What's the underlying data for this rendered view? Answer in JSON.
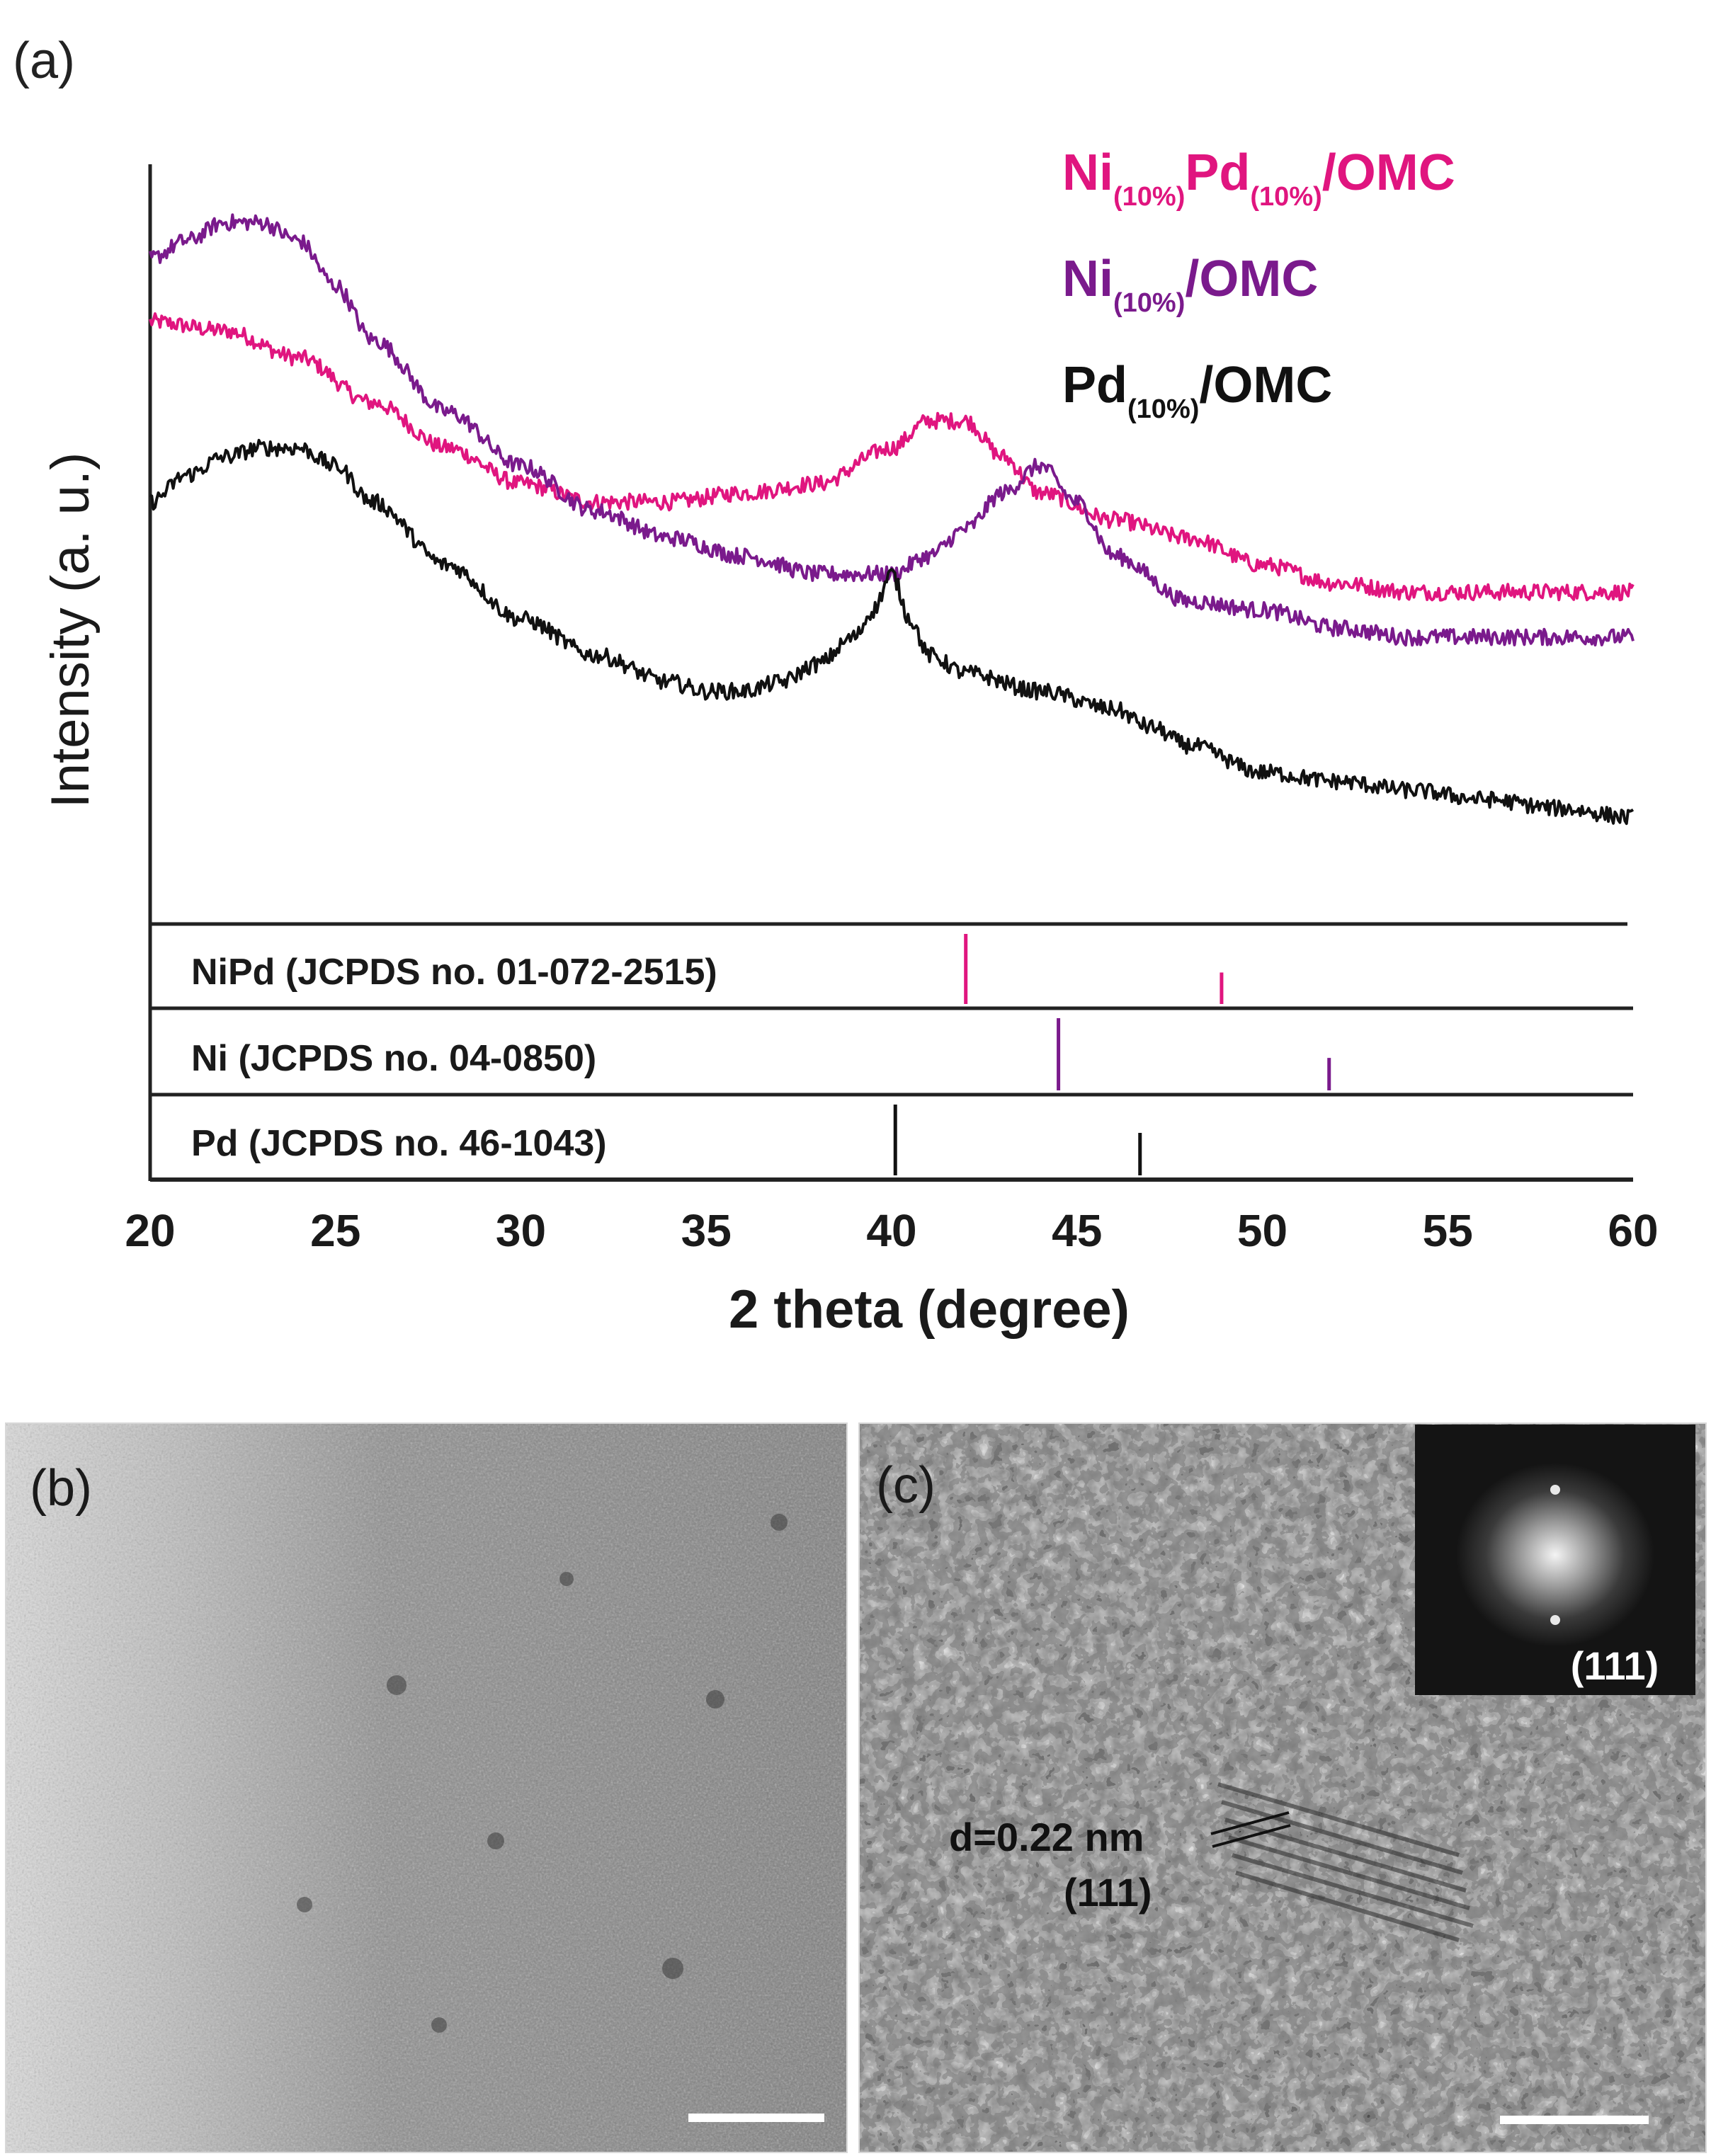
{
  "panels": {
    "a_label": "(a)",
    "b_label": "(b)",
    "c_label": "(c)"
  },
  "chart_data": {
    "type": "line",
    "xlabel": "2 theta (degree)",
    "ylabel": "Intensity (a. u.)",
    "xlim": [
      20,
      60
    ],
    "xticks": [
      20,
      25,
      30,
      35,
      40,
      45,
      50,
      55,
      60
    ],
    "series": [
      {
        "name": "Ni(10%)Pd(10%)/OMC",
        "color": "#e0157f",
        "x": [
          20,
          22,
          24,
          26,
          28,
          30,
          32,
          34,
          36,
          38,
          40,
          41,
          42,
          43,
          44,
          46,
          48,
          50,
          52,
          54,
          56,
          58,
          60
        ],
        "y": [
          0.9,
          0.89,
          0.86,
          0.81,
          0.76,
          0.72,
          0.7,
          0.7,
          0.71,
          0.72,
          0.76,
          0.79,
          0.79,
          0.75,
          0.71,
          0.68,
          0.66,
          0.63,
          0.61,
          0.6,
          0.6,
          0.6,
          0.6
        ]
      },
      {
        "name": "Ni(10%)/OMC",
        "color": "#7a1a8c",
        "x": [
          20,
          21,
          22,
          23,
          24,
          25,
          26,
          28,
          30,
          32,
          34,
          36,
          38,
          39,
          40,
          41,
          42,
          43,
          44,
          45,
          46,
          48,
          50,
          52,
          54,
          56,
          58,
          60
        ],
        "y": [
          0.97,
          0.99,
          1.01,
          1.01,
          0.99,
          0.94,
          0.88,
          0.8,
          0.74,
          0.69,
          0.66,
          0.64,
          0.62,
          0.62,
          0.62,
          0.64,
          0.67,
          0.71,
          0.74,
          0.7,
          0.64,
          0.59,
          0.58,
          0.56,
          0.55,
          0.55,
          0.55,
          0.55
        ]
      },
      {
        "name": "Pd(10%)/OMC",
        "color": "#111111",
        "x": [
          20,
          21,
          22,
          23,
          24,
          25,
          26,
          28,
          30,
          32,
          34,
          35,
          36,
          37,
          38,
          39,
          39.5,
          40,
          40.5,
          41,
          42,
          44,
          46,
          47,
          48,
          50,
          52,
          54,
          56,
          58,
          60
        ],
        "y": [
          0.7,
          0.73,
          0.75,
          0.76,
          0.76,
          0.74,
          0.7,
          0.63,
          0.57,
          0.53,
          0.5,
          0.49,
          0.49,
          0.5,
          0.52,
          0.55,
          0.58,
          0.62,
          0.57,
          0.53,
          0.51,
          0.49,
          0.47,
          0.45,
          0.43,
          0.4,
          0.39,
          0.38,
          0.37,
          0.36,
          0.35
        ]
      }
    ],
    "references": [
      {
        "label": "NiPd (JCPDS no. 01-072-2515)",
        "color": "#e0157f",
        "peaks": [
          {
            "x": 42.0,
            "rel": 1.0
          },
          {
            "x": 48.9,
            "rel": 0.45
          }
        ]
      },
      {
        "label": "Ni (JCPDS no. 04-0850)",
        "color": "#7a1a8c",
        "peaks": [
          {
            "x": 44.5,
            "rel": 1.0
          },
          {
            "x": 51.8,
            "rel": 0.45
          }
        ]
      },
      {
        "label": "Pd (JCPDS no. 46-1043)",
        "color": "#111111",
        "peaks": [
          {
            "x": 40.1,
            "rel": 1.0
          },
          {
            "x": 46.7,
            "rel": 0.6
          }
        ]
      }
    ]
  },
  "legend": [
    {
      "main": "Ni",
      "sub": "(10%)",
      "main2": "Pd",
      "sub2": "(10%)",
      "tail": "/OMC",
      "color": "#e0157f"
    },
    {
      "main": "Ni",
      "sub": "(10%)",
      "main2": "",
      "sub2": "",
      "tail": "/OMC",
      "color": "#7a1a8c"
    },
    {
      "main": "Pd",
      "sub": "(10%)",
      "main2": "",
      "sub2": "",
      "tail": "/OMC",
      "color": "#111111"
    }
  ],
  "tem_c": {
    "d_spacing": "d=0.22 nm",
    "plane": "(111)",
    "fft_plane": "(111)"
  }
}
